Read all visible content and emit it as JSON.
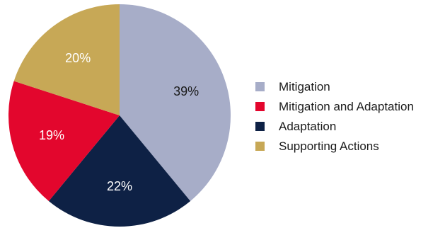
{
  "chart_data": {
    "type": "pie",
    "title": "",
    "slices": [
      {
        "name": "Mitigation",
        "value": 39,
        "label": "39%",
        "color": "#a7adc8",
        "label_color": "#1a1a1a"
      },
      {
        "name": "Adaptation",
        "value": 22,
        "label": "22%",
        "color": "#0e2145",
        "label_color": "#ffffff"
      },
      {
        "name": "Mitigation and Adaptation",
        "value": 19,
        "label": "19%",
        "color": "#e3062d",
        "label_color": "#ffffff"
      },
      {
        "name": "Supporting Actions",
        "value": 20,
        "label": "20%",
        "color": "#c7a856",
        "label_color": "#ffffff"
      }
    ],
    "legend": {
      "placement": "right",
      "entries": [
        {
          "name": "Mitigation",
          "color": "#a7adc8"
        },
        {
          "name": "Mitigation and Adaptation",
          "color": "#e3062d"
        },
        {
          "name": "Adaptation",
          "color": "#0e2145"
        },
        {
          "name": "Supporting Actions",
          "color": "#c7a856"
        }
      ]
    },
    "start_angle": "top",
    "direction": "clockwise"
  }
}
